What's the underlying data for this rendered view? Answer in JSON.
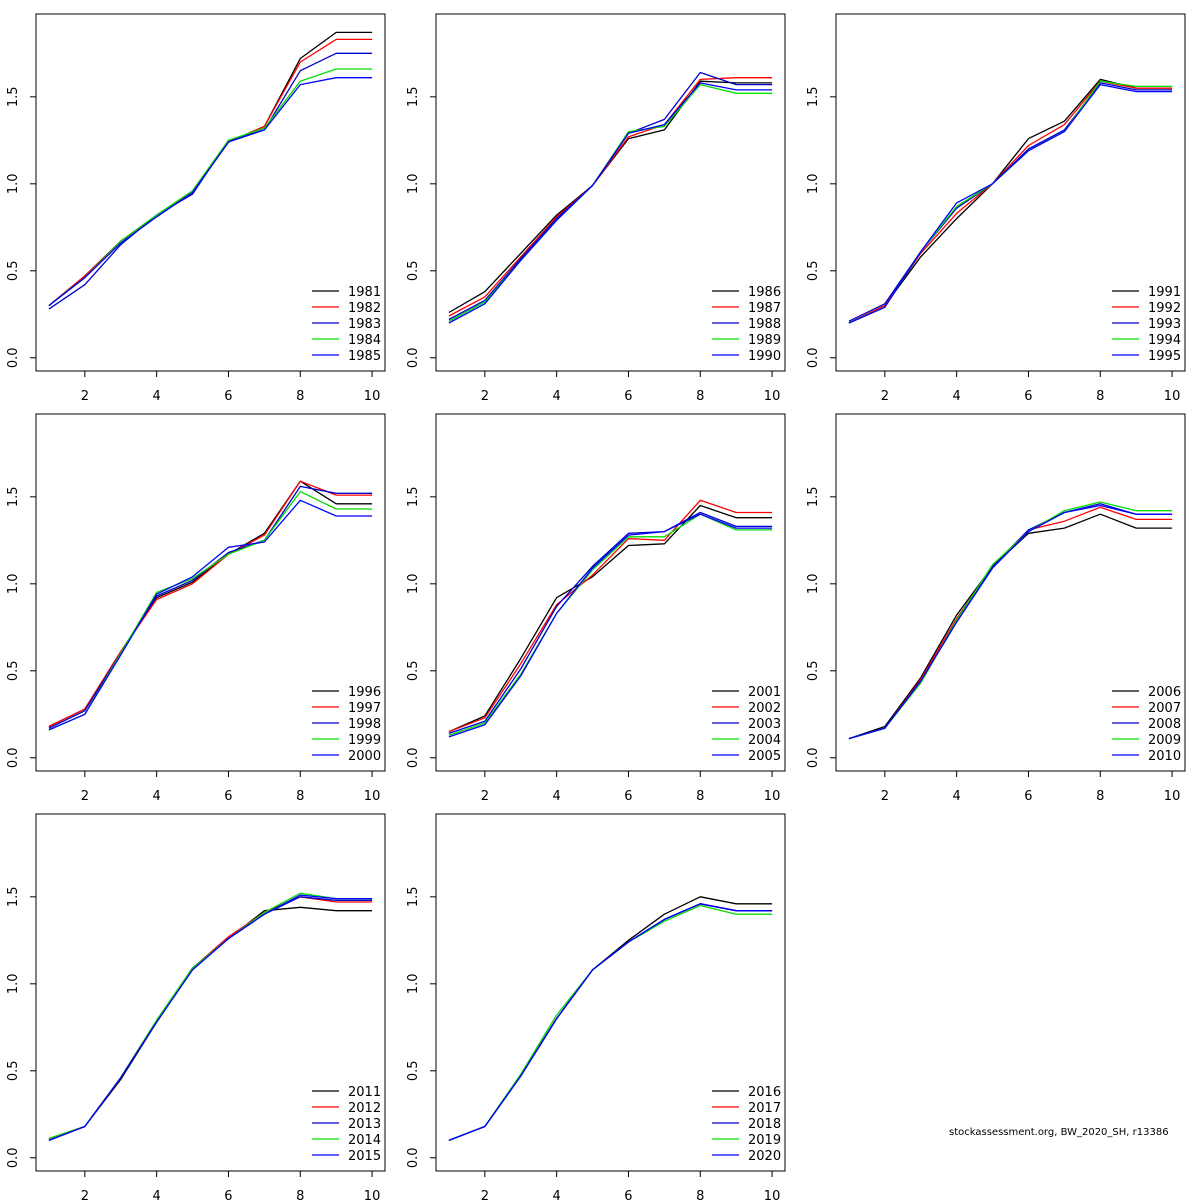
{
  "footer": "stockassessment.org, BW_2020_SH, r13386",
  "colors": [
    "#000000",
    "#ff0000",
    "#0000cd",
    "#00dd00",
    "#0000ff"
  ],
  "chart_data": [
    {
      "type": "line",
      "x": [
        1,
        2,
        3,
        4,
        5,
        6,
        7,
        8,
        9,
        10
      ],
      "ylim": [
        0,
        1.9
      ],
      "xticks": [
        "2",
        "4",
        "6",
        "8",
        "10"
      ],
      "yticks": [
        "0.0",
        "0.5",
        "1.0",
        "1.5"
      ],
      "legend_position": "bottom-right",
      "series": [
        {
          "name": "1981",
          "values": [
            0.3,
            0.47,
            0.67,
            0.82,
            0.95,
            1.24,
            1.33,
            1.72,
            1.87,
            1.87
          ]
        },
        {
          "name": "1982",
          "values": [
            0.3,
            0.47,
            0.67,
            0.82,
            0.95,
            1.24,
            1.33,
            1.7,
            1.83,
            1.83
          ]
        },
        {
          "name": "1983",
          "values": [
            0.28,
            0.42,
            0.65,
            0.82,
            0.94,
            1.25,
            1.31,
            1.65,
            1.75,
            1.75
          ]
        },
        {
          "name": "1984",
          "values": [
            0.3,
            0.46,
            0.67,
            0.82,
            0.96,
            1.25,
            1.32,
            1.59,
            1.66,
            1.66
          ]
        },
        {
          "name": "1985",
          "values": [
            0.3,
            0.46,
            0.66,
            0.81,
            0.95,
            1.24,
            1.31,
            1.57,
            1.61,
            1.61
          ]
        }
      ]
    },
    {
      "type": "line",
      "x": [
        1,
        2,
        3,
        4,
        5,
        6,
        7,
        8,
        9,
        10
      ],
      "ylim": [
        0,
        1.9
      ],
      "xticks": [
        "2",
        "4",
        "6",
        "8",
        "10"
      ],
      "yticks": [
        "0.0",
        "0.5",
        "1.0",
        "1.5"
      ],
      "legend_position": "bottom-right",
      "series": [
        {
          "name": "1986",
          "values": [
            0.26,
            0.38,
            0.6,
            0.82,
            0.99,
            1.26,
            1.31,
            1.59,
            1.58,
            1.58
          ]
        },
        {
          "name": "1987",
          "values": [
            0.24,
            0.35,
            0.58,
            0.81,
            0.99,
            1.27,
            1.34,
            1.6,
            1.61,
            1.61
          ]
        },
        {
          "name": "1988",
          "values": [
            0.22,
            0.33,
            0.57,
            0.8,
            0.99,
            1.29,
            1.37,
            1.64,
            1.57,
            1.57
          ]
        },
        {
          "name": "1989",
          "values": [
            0.21,
            0.32,
            0.56,
            0.79,
            0.99,
            1.3,
            1.33,
            1.57,
            1.52,
            1.52
          ]
        },
        {
          "name": "1990",
          "values": [
            0.2,
            0.31,
            0.56,
            0.79,
            0.99,
            1.29,
            1.34,
            1.58,
            1.54,
            1.54
          ]
        }
      ]
    },
    {
      "type": "line",
      "x": [
        1,
        2,
        3,
        4,
        5,
        6,
        7,
        8,
        9,
        10
      ],
      "ylim": [
        0,
        1.9
      ],
      "xticks": [
        "2",
        "4",
        "6",
        "8",
        "10"
      ],
      "yticks": [
        "0.0",
        "0.5",
        "1.0",
        "1.5"
      ],
      "legend_position": "bottom-right",
      "series": [
        {
          "name": "1991",
          "values": [
            0.2,
            0.3,
            0.58,
            0.8,
            1.0,
            1.26,
            1.36,
            1.6,
            1.55,
            1.55
          ]
        },
        {
          "name": "1992",
          "values": [
            0.2,
            0.3,
            0.6,
            0.83,
            1.0,
            1.22,
            1.34,
            1.59,
            1.55,
            1.55
          ]
        },
        {
          "name": "1993",
          "values": [
            0.21,
            0.31,
            0.61,
            0.86,
            1.0,
            1.2,
            1.31,
            1.58,
            1.54,
            1.54
          ]
        },
        {
          "name": "1994",
          "values": [
            0.2,
            0.29,
            0.61,
            0.87,
            1.0,
            1.19,
            1.3,
            1.59,
            1.56,
            1.56
          ]
        },
        {
          "name": "1995",
          "values": [
            0.2,
            0.29,
            0.61,
            0.89,
            1.0,
            1.19,
            1.3,
            1.57,
            1.53,
            1.53
          ]
        }
      ]
    },
    {
      "type": "line",
      "x": [
        1,
        2,
        3,
        4,
        5,
        6,
        7,
        8,
        9,
        10
      ],
      "ylim": [
        0,
        1.9
      ],
      "xticks": [
        "2",
        "4",
        "6",
        "8",
        "10"
      ],
      "yticks": [
        "0.0",
        "0.5",
        "1.0",
        "1.5"
      ],
      "legend_position": "bottom-right",
      "series": [
        {
          "name": "1996",
          "values": [
            0.18,
            0.28,
            0.61,
            0.92,
            1.01,
            1.17,
            1.29,
            1.59,
            1.46,
            1.46
          ]
        },
        {
          "name": "1997",
          "values": [
            0.18,
            0.28,
            0.61,
            0.91,
            1.0,
            1.17,
            1.28,
            1.59,
            1.51,
            1.51
          ]
        },
        {
          "name": "1998",
          "values": [
            0.17,
            0.27,
            0.6,
            0.93,
            1.02,
            1.18,
            1.25,
            1.56,
            1.52,
            1.52
          ]
        },
        {
          "name": "1999",
          "values": [
            0.16,
            0.25,
            0.6,
            0.95,
            1.03,
            1.17,
            1.25,
            1.53,
            1.43,
            1.43
          ]
        },
        {
          "name": "2000",
          "values": [
            0.16,
            0.25,
            0.59,
            0.94,
            1.04,
            1.21,
            1.24,
            1.48,
            1.39,
            1.39
          ]
        }
      ]
    },
    {
      "type": "line",
      "x": [
        1,
        2,
        3,
        4,
        5,
        6,
        7,
        8,
        9,
        10
      ],
      "ylim": [
        0,
        1.9
      ],
      "xticks": [
        "2",
        "4",
        "6",
        "8",
        "10"
      ],
      "yticks": [
        "0.0",
        "0.5",
        "1.0",
        "1.5"
      ],
      "legend_position": "bottom-right",
      "series": [
        {
          "name": "2001",
          "values": [
            0.15,
            0.24,
            0.57,
            0.92,
            1.04,
            1.22,
            1.23,
            1.45,
            1.38,
            1.38
          ]
        },
        {
          "name": "2002",
          "values": [
            0.15,
            0.23,
            0.54,
            0.88,
            1.05,
            1.26,
            1.25,
            1.48,
            1.41,
            1.41
          ]
        },
        {
          "name": "2003",
          "values": [
            0.14,
            0.21,
            0.51,
            0.87,
            1.1,
            1.29,
            1.3,
            1.41,
            1.33,
            1.33
          ]
        },
        {
          "name": "2004",
          "values": [
            0.13,
            0.2,
            0.48,
            0.83,
            1.08,
            1.27,
            1.27,
            1.4,
            1.31,
            1.31
          ]
        },
        {
          "name": "2005",
          "values": [
            0.12,
            0.19,
            0.47,
            0.83,
            1.09,
            1.28,
            1.3,
            1.4,
            1.32,
            1.32
          ]
        }
      ]
    },
    {
      "type": "line",
      "x": [
        1,
        2,
        3,
        4,
        5,
        6,
        7,
        8,
        9,
        10
      ],
      "ylim": [
        0,
        1.9
      ],
      "xticks": [
        "2",
        "4",
        "6",
        "8",
        "10"
      ],
      "yticks": [
        "0.0",
        "0.5",
        "1.0",
        "1.5"
      ],
      "legend_position": "bottom-right",
      "series": [
        {
          "name": "2006",
          "values": [
            0.11,
            0.18,
            0.46,
            0.82,
            1.1,
            1.29,
            1.32,
            1.4,
            1.32,
            1.32
          ]
        },
        {
          "name": "2007",
          "values": [
            0.11,
            0.17,
            0.45,
            0.8,
            1.1,
            1.31,
            1.36,
            1.44,
            1.37,
            1.37
          ]
        },
        {
          "name": "2008",
          "values": [
            0.11,
            0.17,
            0.44,
            0.78,
            1.1,
            1.31,
            1.41,
            1.46,
            1.4,
            1.4
          ]
        },
        {
          "name": "2009",
          "values": [
            0.11,
            0.17,
            0.43,
            0.79,
            1.11,
            1.3,
            1.42,
            1.47,
            1.42,
            1.42
          ]
        },
        {
          "name": "2010",
          "values": [
            0.11,
            0.17,
            0.44,
            0.78,
            1.09,
            1.3,
            1.41,
            1.45,
            1.4,
            1.4
          ]
        }
      ]
    },
    {
      "type": "line",
      "x": [
        1,
        2,
        3,
        4,
        5,
        6,
        7,
        8,
        9,
        10
      ],
      "ylim": [
        0,
        1.9
      ],
      "xticks": [
        "2",
        "4",
        "6",
        "8",
        "10"
      ],
      "yticks": [
        "0.0",
        "0.5",
        "1.0",
        "1.5"
      ],
      "legend_position": "bottom-right",
      "series": [
        {
          "name": "2011",
          "values": [
            0.11,
            0.18,
            0.45,
            0.78,
            1.09,
            1.26,
            1.42,
            1.44,
            1.42,
            1.42
          ]
        },
        {
          "name": "2012",
          "values": [
            0.11,
            0.18,
            0.46,
            0.79,
            1.09,
            1.27,
            1.41,
            1.5,
            1.47,
            1.47
          ]
        },
        {
          "name": "2013",
          "values": [
            0.1,
            0.18,
            0.46,
            0.78,
            1.09,
            1.26,
            1.4,
            1.5,
            1.48,
            1.48
          ]
        },
        {
          "name": "2014",
          "values": [
            0.11,
            0.18,
            0.46,
            0.79,
            1.09,
            1.26,
            1.41,
            1.52,
            1.49,
            1.49
          ]
        },
        {
          "name": "2015",
          "values": [
            0.1,
            0.18,
            0.46,
            0.78,
            1.08,
            1.26,
            1.4,
            1.51,
            1.49,
            1.49
          ]
        }
      ]
    },
    {
      "type": "line",
      "x": [
        1,
        2,
        3,
        4,
        5,
        6,
        7,
        8,
        9,
        10
      ],
      "ylim": [
        0,
        1.9
      ],
      "xticks": [
        "2",
        "4",
        "6",
        "8",
        "10"
      ],
      "yticks": [
        "0.0",
        "0.5",
        "1.0",
        "1.5"
      ],
      "legend_position": "bottom-right",
      "series": [
        {
          "name": "2016",
          "values": [
            0.1,
            0.18,
            0.47,
            0.8,
            1.08,
            1.25,
            1.4,
            1.5,
            1.46,
            1.46
          ]
        },
        {
          "name": "2017",
          "values": [
            0.1,
            0.18,
            0.47,
            0.8,
            1.08,
            1.24,
            1.37,
            1.46,
            1.42,
            1.42
          ]
        },
        {
          "name": "2018",
          "values": [
            0.1,
            0.18,
            0.47,
            0.8,
            1.08,
            1.24,
            1.37,
            1.46,
            1.42,
            1.42
          ]
        },
        {
          "name": "2019",
          "values": [
            0.1,
            0.18,
            0.48,
            0.82,
            1.08,
            1.24,
            1.36,
            1.45,
            1.4,
            1.4
          ]
        },
        {
          "name": "2020",
          "values": [
            0.1,
            0.18,
            0.47,
            0.8,
            1.08,
            1.24,
            1.37,
            1.46,
            1.42,
            1.42
          ]
        }
      ]
    }
  ]
}
